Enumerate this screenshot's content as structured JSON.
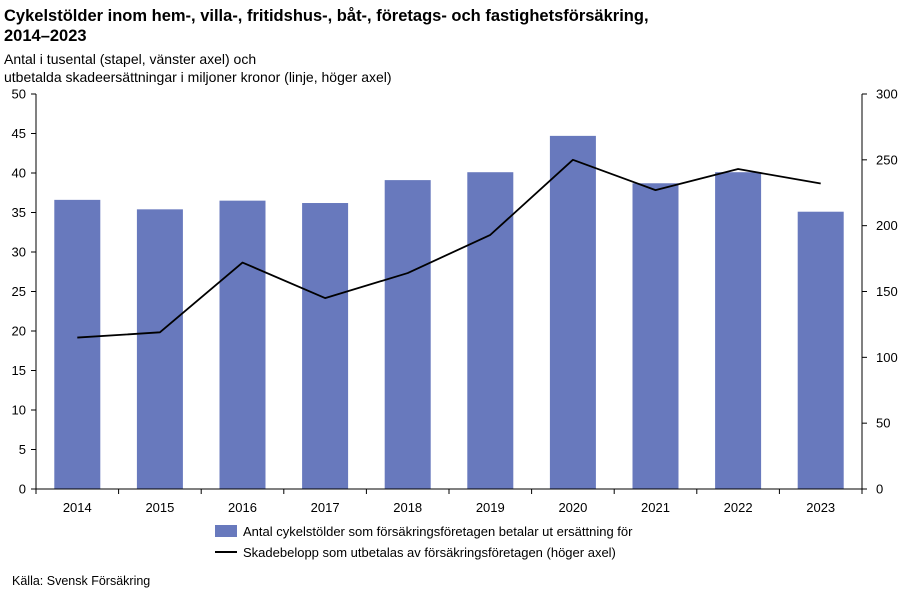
{
  "title_lines": [
    "Cykelstölder inom hem-, villa-, fritidshus-, båt-, företags- och fastighetsförsäkring,",
    "2014–2023"
  ],
  "subtitle_lines": [
    "Antal i tusental (stapel, vänster axel) och",
    "utbetalda skadeersättningar i miljoner kronor (linje, höger axel)"
  ],
  "source": "Källa: Svensk Försäkring",
  "colors": {
    "bar": "#6879bd",
    "line": "#000000",
    "axis": "#000000"
  },
  "chart_data": {
    "type": "bar",
    "categories": [
      "2014",
      "2015",
      "2016",
      "2017",
      "2018",
      "2019",
      "2020",
      "2021",
      "2022",
      "2023"
    ],
    "series": [
      {
        "name": "Antal cykelstölder som försäkringsföretagen betalar ut ersättning för",
        "type": "bar",
        "axis": "left",
        "values": [
          36.6,
          35.4,
          36.5,
          36.2,
          39.1,
          40.1,
          44.7,
          38.7,
          40.1,
          35.1
        ]
      },
      {
        "name": "Skadebelopp som utbetalas av försäkringsföretagen (höger axel)",
        "type": "line",
        "axis": "right",
        "values": [
          115,
          119,
          172,
          145,
          164,
          193,
          250,
          227,
          243,
          232
        ]
      }
    ],
    "y_left": {
      "min": 0,
      "max": 50,
      "ticks": [
        "0",
        "5",
        "10",
        "15",
        "20",
        "25",
        "30",
        "35",
        "40",
        "45",
        "50"
      ]
    },
    "y_right": {
      "min": 0,
      "max": 300,
      "ticks": [
        "0",
        "50",
        "100",
        "150",
        "200",
        "250",
        "300"
      ]
    },
    "grid": false,
    "legend_position": "bottom"
  }
}
